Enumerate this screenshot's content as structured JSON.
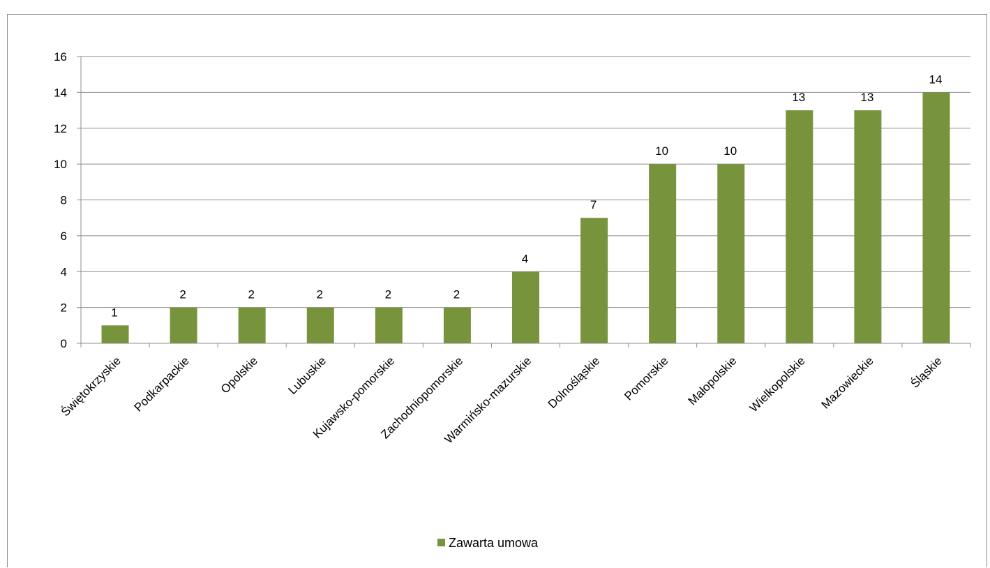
{
  "chart_data": {
    "type": "bar",
    "categories": [
      "Świętokrzyskie",
      "Podkarpackie",
      "Opolskie",
      "Lubuskie",
      "Kujawsko-pomorskie",
      "Zachodniopomorskie",
      "Warmińsko-mazurskie",
      "Dolnośląskie",
      "Pomorskie",
      "Małopolskie",
      "Wielkopolskie",
      "Mazowieckie",
      "Śląskie"
    ],
    "series": [
      {
        "name": "Zawarta umowa",
        "values": [
          1,
          2,
          2,
          2,
          2,
          2,
          4,
          7,
          10,
          10,
          13,
          13,
          14
        ],
        "color": "#77933c"
      }
    ],
    "ylim": [
      0,
      16
    ],
    "yticks": [
      0,
      2,
      4,
      6,
      8,
      10,
      12,
      14,
      16
    ],
    "grid": true,
    "data_labels": true,
    "legend": "bottom"
  }
}
